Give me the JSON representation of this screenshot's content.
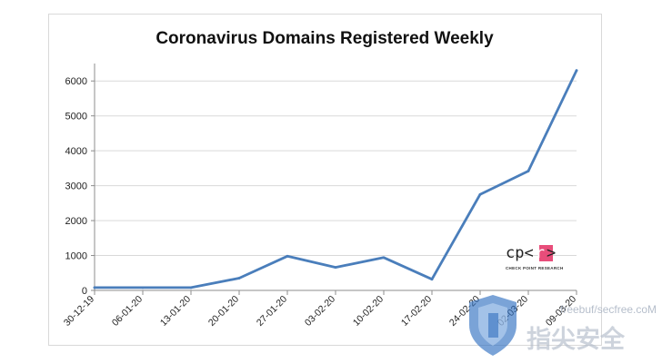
{
  "chart_data": {
    "type": "line",
    "title": "Coronavirus Domains Registered Weekly",
    "categories": [
      "30-12-19",
      "06-01-20",
      "13-01-20",
      "20-01-20",
      "27-01-20",
      "03-02-20",
      "10-02-20",
      "17-02-20",
      "24-02-20",
      "02-03-20",
      "09-03-20"
    ],
    "values": [
      80,
      80,
      80,
      350,
      980,
      660,
      940,
      320,
      2750,
      3420,
      6300
    ],
    "ylim": [
      0,
      6500
    ],
    "yticks": [
      0,
      1000,
      2000,
      3000,
      4000,
      5000,
      6000
    ],
    "grid": true,
    "colors": {
      "line": "#4a7ebb",
      "grid": "#d9d9d9",
      "axis": "#8c8c8c"
    }
  },
  "logo": {
    "text": "cp<r>",
    "subtext": "CHECK POINT RESEARCH",
    "accent": "#e84d7a"
  },
  "watermark": {
    "text_small": "freebuf/secfree.coM",
    "text_large": "指尖安全",
    "icon": "shield-icon"
  }
}
